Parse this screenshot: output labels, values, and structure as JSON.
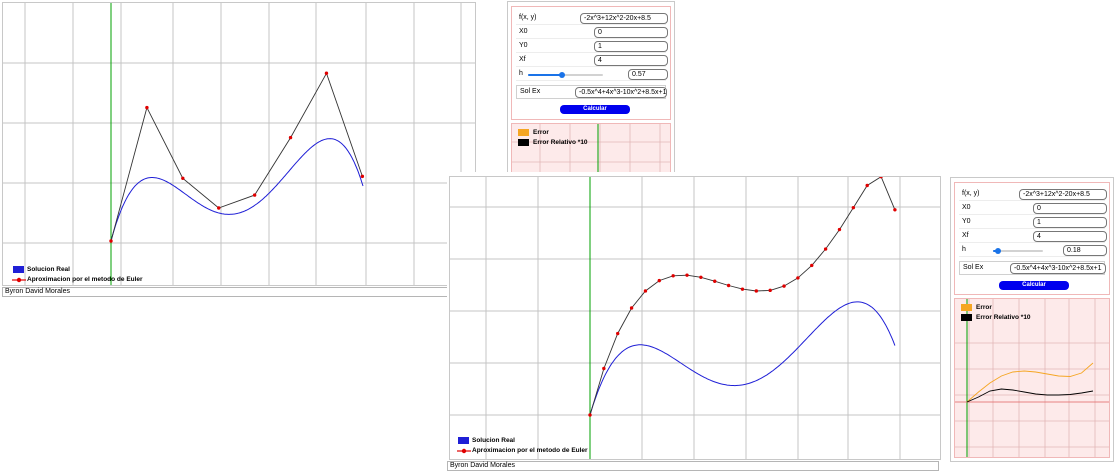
{
  "author": "Byron David Morales",
  "legend": {
    "real": "Solucion Real",
    "euler": "Aproximacion por el metodo de Euler"
  },
  "error_legend": {
    "error": "Error",
    "relative": "Error Relativo *10"
  },
  "colors": {
    "real": "#1f1fd6",
    "euler": "#e00000",
    "euler_line": "#333333",
    "error": "#f5a623",
    "relative": "#000000",
    "axis": "#00a000",
    "button": "#0000ee"
  },
  "windows": [
    {
      "form": {
        "fxy_label": "f(x, y)",
        "fxy": "-2x^3+12x^2-20x+8.5",
        "x0_label": "X0",
        "x0": "0",
        "y0_label": "Y0",
        "y0": "1",
        "xf_label": "Xf",
        "xf": "4",
        "h_label": "h",
        "h": "0.57",
        "h_fraction": 0.45,
        "solex_label": "Sol Ex",
        "solex": "-0.5x^4+4x^3-10x^2+8.5x+1",
        "button": "Calcular"
      }
    },
    {
      "form": {
        "fxy_label": "f(x, y)",
        "fxy": "-2x^3+12x^2-20x+8.5",
        "x0_label": "X0",
        "x0": "0",
        "y0_label": "Y0",
        "y0": "1",
        "xf_label": "Xf",
        "xf": "4",
        "h_label": "h",
        "h": "0.18",
        "h_fraction": 0.1,
        "solex_label": "Sol Ex",
        "solex": "-0.5x^4+4x^3-10x^2+8.5x+1",
        "button": "Calcular"
      }
    }
  ],
  "chart_data": [
    {
      "type": "line",
      "title": "",
      "xlabel": "",
      "ylabel": "",
      "grid": true,
      "legend_position": "bottom-left",
      "series": [
        {
          "name": "Solucion Real",
          "function": "-0.5x^4+4x^3-10x^2+8.5x+1",
          "x_range": [
            0,
            4
          ]
        },
        {
          "name": "Aproximacion por el metodo de Euler",
          "h": 0.57,
          "x": [
            0,
            0.57,
            1.14,
            1.71,
            2.28,
            2.85,
            3.42,
            3.99
          ],
          "y": [
            1,
            5.85,
            3.28,
            2.2,
            2.67,
            4.76,
            7.1,
            3.35
          ]
        }
      ]
    },
    {
      "type": "line",
      "title": "",
      "xlabel": "",
      "ylabel": "",
      "grid": true,
      "legend_position": "bottom-left",
      "series": [
        {
          "name": "Solucion Real",
          "function": "-0.5x^4+4x^3-10x^2+8.5x+1",
          "x_range": [
            0,
            3.96
          ]
        },
        {
          "name": "Aproximacion por el metodo de Euler",
          "h": 0.18,
          "x": [
            0,
            0.18,
            0.36,
            0.54,
            0.72,
            0.9,
            1.08,
            1.26,
            1.44,
            1.62,
            1.8,
            1.98,
            2.16,
            2.34,
            2.52,
            2.7,
            2.88,
            3.06,
            3.24,
            3.42,
            3.6,
            3.78,
            3.96
          ],
          "y": [
            1,
            2.53,
            3.68,
            4.52,
            5.08,
            5.42,
            5.58,
            5.6,
            5.53,
            5.4,
            5.26,
            5.14,
            5.08,
            5.1,
            5.24,
            5.51,
            5.92,
            6.46,
            7.1,
            7.82,
            8.55,
            8.84,
            7.75
          ]
        }
      ]
    },
    {
      "type": "line",
      "title": "",
      "xlabel": "",
      "ylabel": "",
      "grid": true,
      "series": [
        {
          "name": "Error",
          "y": [
            0.0,
            0.2,
            0.38,
            0.52,
            0.6,
            0.62,
            0.6,
            0.56,
            0.52,
            0.51,
            0.58,
            0.78
          ]
        },
        {
          "name": "Error Relativo *10",
          "y": [
            0.0,
            0.1,
            0.22,
            0.26,
            0.24,
            0.2,
            0.16,
            0.14,
            0.14,
            0.15,
            0.18,
            0.22
          ]
        }
      ]
    }
  ]
}
